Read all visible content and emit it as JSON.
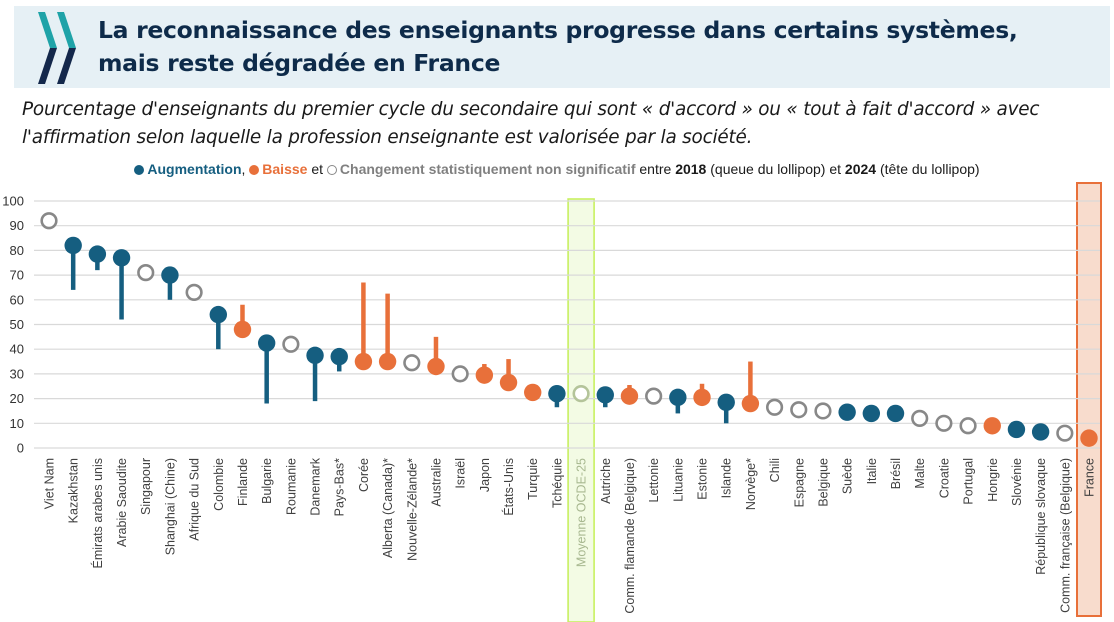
{
  "header": {
    "title_line1": "La reconnaissance des enseignants progresse dans certains systèmes,",
    "title_line2": "mais reste dégradée en France",
    "logo": "oecd-chevron-logo-icon",
    "colors": {
      "band": "#e6f0f5",
      "title": "#0e2b4a",
      "logo_top": "#1fa3a8",
      "logo_bottom": "#14284b"
    }
  },
  "subtitle": "Pourcentage d'enseignants du premier cycle du secondaire qui sont « d'accord » ou « tout à fait d'accord » avec l'affirmation selon laquelle la profession enseignante est valorisée par la société.",
  "legend": {
    "increase": "Augmentation",
    "comma": ",",
    "decrease": "Baisse",
    "and": "et",
    "not_significant": "Changement statistiquement non significatif",
    "between": "entre",
    "year_start": "2018",
    "tail_note": "(queue du lollipop)",
    "et2": "et",
    "year_end": "2024",
    "head_note": "(tête du lollipop)"
  },
  "chart_data": {
    "type": "lollipop",
    "title": "La reconnaissance des enseignants progresse dans certains systèmes, mais reste dégradée en France",
    "ylabel": "",
    "xlabel": "",
    "ylim": [
      0,
      100
    ],
    "yticks": [
      0,
      10,
      20,
      30,
      40,
      50,
      60,
      70,
      80,
      90,
      100
    ],
    "grid": true,
    "legend_position": "top-center",
    "colors": {
      "increase": "#155e80",
      "decrease": "#e8703a",
      "not_significant": "#888888",
      "average_highlight": "#c8f060",
      "france_highlight": "#e8703a"
    },
    "series": [
      {
        "name": "2018 (queue)",
        "key": "y2018"
      },
      {
        "name": "2024 (tête)",
        "key": "y2024"
      }
    ],
    "categories": [
      {
        "label": "Viet Nam",
        "y2024": 92,
        "y2018": null,
        "change": "ns"
      },
      {
        "label": "Kazakhstan",
        "y2024": 82,
        "y2018": 64,
        "change": "increase"
      },
      {
        "label": "Émirats arabes unis",
        "y2024": 78.5,
        "y2018": 72,
        "change": "increase"
      },
      {
        "label": "Arabie Saoudite",
        "y2024": 77,
        "y2018": 52,
        "change": "increase"
      },
      {
        "label": "Singapour",
        "y2024": 71,
        "y2018": null,
        "change": "ns"
      },
      {
        "label": "Shanghai (Chine)",
        "y2024": 70,
        "y2018": 60,
        "change": "increase"
      },
      {
        "label": "Afrique du Sud",
        "y2024": 63,
        "y2018": null,
        "change": "ns"
      },
      {
        "label": "Colombie",
        "y2024": 54,
        "y2018": 40,
        "change": "increase"
      },
      {
        "label": "Finlande",
        "y2024": 48,
        "y2018": 58,
        "change": "decrease"
      },
      {
        "label": "Bulgarie",
        "y2024": 42.5,
        "y2018": 18,
        "change": "increase"
      },
      {
        "label": "Roumanie",
        "y2024": 42,
        "y2018": null,
        "change": "ns"
      },
      {
        "label": "Danemark",
        "y2024": 37.5,
        "y2018": 19,
        "change": "increase"
      },
      {
        "label": "Pays-Bas*",
        "y2024": 37,
        "y2018": 31,
        "change": "increase"
      },
      {
        "label": "Corée",
        "y2024": 35,
        "y2018": 67,
        "change": "decrease"
      },
      {
        "label": "Alberta (Canada)*",
        "y2024": 35,
        "y2018": 62.5,
        "change": "decrease"
      },
      {
        "label": "Nouvelle-Zélande*",
        "y2024": 34.5,
        "y2018": null,
        "change": "ns"
      },
      {
        "label": "Australie",
        "y2024": 33,
        "y2018": 45,
        "change": "decrease"
      },
      {
        "label": "Israël",
        "y2024": 30,
        "y2018": null,
        "change": "ns"
      },
      {
        "label": "Japon",
        "y2024": 29.5,
        "y2018": 34,
        "change": "decrease"
      },
      {
        "label": "États-Unis",
        "y2024": 26.5,
        "y2018": 36,
        "change": "decrease"
      },
      {
        "label": "Turquie",
        "y2024": 22.5,
        "y2018": 23,
        "change": "decrease"
      },
      {
        "label": "Tchéquie",
        "y2024": 22,
        "y2018": 16.5,
        "change": "increase"
      },
      {
        "label": "Moyenne OCDE-25",
        "y2024": 22,
        "y2018": null,
        "change": "average"
      },
      {
        "label": "Autriche",
        "y2024": 21.5,
        "y2018": 16.5,
        "change": "increase"
      },
      {
        "label": "Comm. flamande (Belgique)",
        "y2024": 21,
        "y2018": 25.5,
        "change": "decrease"
      },
      {
        "label": "Lettonie",
        "y2024": 21,
        "y2018": null,
        "change": "ns"
      },
      {
        "label": "Lituanie",
        "y2024": 20.5,
        "y2018": 14,
        "change": "increase"
      },
      {
        "label": "Estonie",
        "y2024": 20.5,
        "y2018": 26,
        "change": "decrease"
      },
      {
        "label": "Islande",
        "y2024": 18.5,
        "y2018": 10,
        "change": "increase"
      },
      {
        "label": "Norvège*",
        "y2024": 18,
        "y2018": 35,
        "change": "decrease"
      },
      {
        "label": "Chili",
        "y2024": 16.5,
        "y2018": null,
        "change": "ns"
      },
      {
        "label": "Espagne",
        "y2024": 15.5,
        "y2018": null,
        "change": "ns"
      },
      {
        "label": "Belgique",
        "y2024": 15,
        "y2018": null,
        "change": "ns"
      },
      {
        "label": "Suède",
        "y2024": 14.5,
        "y2018": 12,
        "change": "increase"
      },
      {
        "label": "Italie",
        "y2024": 14,
        "y2018": 13,
        "change": "increase"
      },
      {
        "label": "Brésil",
        "y2024": 14,
        "y2018": 13,
        "change": "increase"
      },
      {
        "label": "Malte",
        "y2024": 12,
        "y2018": null,
        "change": "ns"
      },
      {
        "label": "Croatie",
        "y2024": 10,
        "y2018": null,
        "change": "ns"
      },
      {
        "label": "Portugal",
        "y2024": 9,
        "y2018": null,
        "change": "ns"
      },
      {
        "label": "Hongrie",
        "y2024": 9,
        "y2018": 9.5,
        "change": "decrease"
      },
      {
        "label": "Slovénie",
        "y2024": 7.5,
        "y2018": 7,
        "change": "increase"
      },
      {
        "label": "République slovaque",
        "y2024": 6.5,
        "y2018": 6,
        "change": "increase"
      },
      {
        "label": "Comm. française (Belgique)",
        "y2024": 6,
        "y2018": null,
        "change": "ns"
      },
      {
        "label": "France",
        "y2024": 4,
        "y2018": 5,
        "change": "decrease"
      }
    ]
  }
}
